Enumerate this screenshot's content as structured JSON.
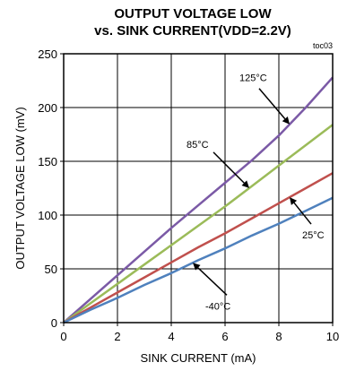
{
  "chart_data": {
    "type": "line",
    "title": "OUTPUT VOLTAGE LOW",
    "subtitle": "vs. SINK CURRENT(VDD=2.2V)",
    "figure_id": "toc03",
    "xlabel": "SINK CURRENT (mA)",
    "ylabel": "OUTPUT VOLTAGE LOW (mV)",
    "xlim": [
      0,
      10
    ],
    "ylim": [
      0,
      250
    ],
    "xticks": [
      0,
      2,
      4,
      6,
      8,
      10
    ],
    "yticks": [
      0,
      50,
      100,
      150,
      200,
      250
    ],
    "grid": true,
    "series": [
      {
        "name": "125°C",
        "color": "#7b5aa6",
        "x": [
          0,
          1,
          2,
          3,
          4,
          5,
          6,
          7,
          8,
          9,
          10
        ],
        "y": [
          0,
          22,
          44,
          66,
          88,
          109,
          130,
          151,
          174,
          200,
          228
        ]
      },
      {
        "name": "85°C",
        "color": "#9bbb59",
        "x": [
          0,
          1,
          2,
          3,
          4,
          5,
          6,
          7,
          8,
          9,
          10
        ],
        "y": [
          0,
          18,
          36,
          54,
          72,
          90,
          108,
          127,
          146,
          165,
          184
        ]
      },
      {
        "name": "25°C",
        "color": "#c0504d",
        "x": [
          0,
          1,
          2,
          3,
          4,
          5,
          6,
          7,
          8,
          9,
          10
        ],
        "y": [
          0,
          14,
          28,
          42,
          56,
          70,
          83,
          97,
          111,
          125,
          139
        ]
      },
      {
        "name": "-40°C",
        "color": "#4f81bd",
        "x": [
          0,
          1,
          2,
          3,
          4,
          5,
          6,
          7,
          8,
          9,
          10
        ],
        "y": [
          0,
          12,
          23,
          35,
          46,
          58,
          69,
          81,
          92,
          104,
          116
        ]
      }
    ],
    "annotations": [
      {
        "text": "125°C",
        "series": "125°C",
        "at_x": 8.4
      },
      {
        "text": "85°C",
        "series": "85°C",
        "at_x": 6.9
      },
      {
        "text": "25°C",
        "series": "25°C",
        "at_x": 8.4
      },
      {
        "text": "-40°C",
        "series": "-40°C",
        "at_x": 4.8
      }
    ]
  }
}
